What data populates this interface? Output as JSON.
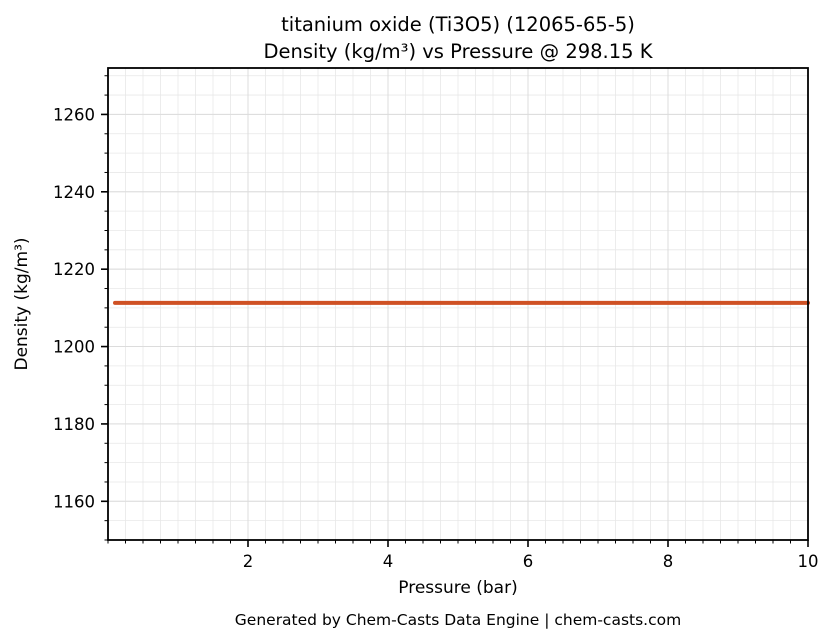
{
  "figure": {
    "footer": "Generated by Chem-Casts Data Engine | chem-casts.com"
  },
  "colors": {
    "line": "#cf5124",
    "grid_minor": "#e8e8e8",
    "grid_major": "#dcdcdc",
    "axis": "#000000",
    "footer_text": "#595959",
    "background": "#ffffff"
  },
  "chart_data": {
    "type": "line",
    "title": "titanium oxide (Ti3O5) (12065-65-5)",
    "subtitle": "Density (kg/m³) vs Pressure @ 298.15 K",
    "xlabel": "Pressure (bar)",
    "ylabel": "Density (kg/m³)",
    "xlim": [
      0,
      10
    ],
    "ylim": [
      1150,
      1272
    ],
    "x_ticks": [
      2,
      4,
      6,
      8,
      10
    ],
    "y_ticks": [
      1160,
      1180,
      1200,
      1220,
      1240,
      1260
    ],
    "x_minor_step": 0.25,
    "y_minor_step": 5,
    "grid": true,
    "legend": false,
    "series": [
      {
        "name": "Density",
        "color": "#cf5124",
        "x": [
          0.1,
          1,
          2,
          3,
          4,
          5,
          6,
          7,
          8,
          9,
          10
        ],
        "y": [
          1211.3,
          1211.3,
          1211.3,
          1211.3,
          1211.3,
          1211.3,
          1211.3,
          1211.3,
          1211.3,
          1211.3,
          1211.3
        ]
      }
    ]
  }
}
